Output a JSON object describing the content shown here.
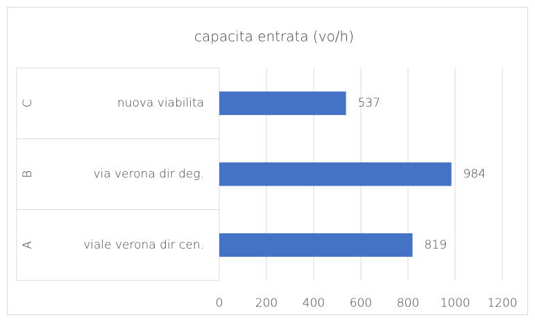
{
  "chart_data": {
    "type": "bar",
    "orientation": "horizontal",
    "title": "capacita entrata (vo/h)",
    "groups": [
      "C",
      "B",
      "A"
    ],
    "categories": [
      "nuova viabilita",
      "via verona dir deg.",
      "viale verona dir cen."
    ],
    "values": [
      537,
      984,
      819
    ],
    "color": "#4472c4",
    "xlim": [
      0,
      1200
    ],
    "xticks": [
      0,
      200,
      400,
      600,
      800,
      1000,
      1200
    ],
    "grid": true
  }
}
